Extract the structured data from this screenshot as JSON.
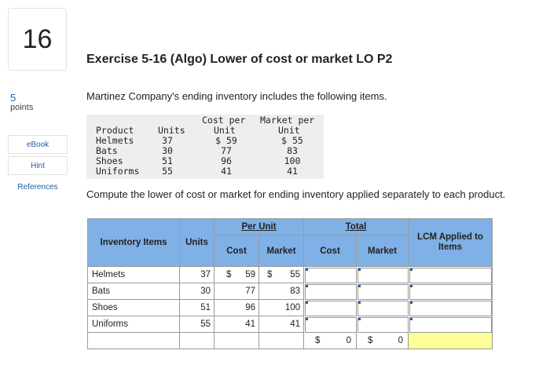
{
  "question": {
    "number": "16",
    "points": "5",
    "points_label": "points"
  },
  "sidebar": {
    "ebook": "eBook",
    "hint": "Hint",
    "references": "References"
  },
  "title": "Exercise 5-16 (Algo) Lower of cost or market LO P2",
  "intro": "Martinez Company's ending inventory includes the following items.",
  "given": {
    "h_line1": [
      "Cost per",
      "Market per"
    ],
    "h_line2": [
      "Product",
      "Units",
      "Unit",
      "Unit"
    ],
    "rows": [
      {
        "product": "Helmets",
        "units": "37",
        "cost": "$ 59",
        "market": "$ 55"
      },
      {
        "product": "Bats",
        "units": "30",
        "cost": "77",
        "market": "83"
      },
      {
        "product": "Shoes",
        "units": "51",
        "cost": "96",
        "market": "100"
      },
      {
        "product": "Uniforms",
        "units": "55",
        "cost": "41",
        "market": "41"
      }
    ]
  },
  "instruction": "Compute the lower of cost or market for ending inventory applied separately to each product.",
  "grid": {
    "headers": {
      "items": "Inventory Items",
      "units": "Units",
      "per_unit": "Per Unit",
      "total": "Total",
      "cost": "Cost",
      "market": "Market",
      "t_cost": "Cost",
      "t_market": "Market",
      "lcm": "LCM Applied to Items"
    },
    "rows": [
      {
        "item": "Helmets",
        "units": "37",
        "cost_sym": "$",
        "cost": "59",
        "market_sym": "$",
        "market": "55"
      },
      {
        "item": "Bats",
        "units": "30",
        "cost_sym": "",
        "cost": "77",
        "market_sym": "",
        "market": "83"
      },
      {
        "item": "Shoes",
        "units": "51",
        "cost_sym": "",
        "cost": "96",
        "market_sym": "",
        "market": "100"
      },
      {
        "item": "Uniforms",
        "units": "55",
        "cost_sym": "",
        "cost": "41",
        "market_sym": "",
        "market": "41"
      }
    ],
    "totals": {
      "cost_sym": "$",
      "cost": "0",
      "market_sym": "$",
      "market": "0"
    }
  },
  "colors": {
    "header_blue": "#7fb0e6",
    "link_blue": "#1f5fa8",
    "total_highlight": "#ffff99"
  }
}
